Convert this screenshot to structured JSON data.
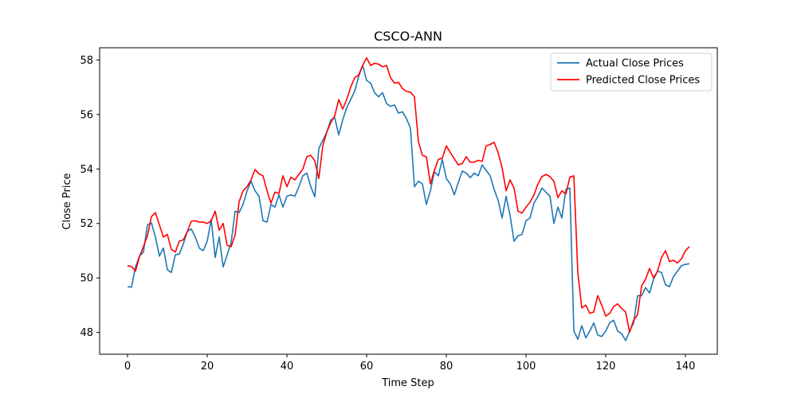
{
  "chart_data": {
    "type": "line",
    "title": "CSCO-ANN",
    "xlabel": "Time Step",
    "ylabel": "Close Price",
    "xlim": [
      -7,
      148
    ],
    "ylim": [
      47.2,
      58.45
    ],
    "xticks": [
      0,
      20,
      40,
      60,
      80,
      100,
      120,
      140
    ],
    "yticks": [
      48,
      50,
      52,
      54,
      56,
      58
    ],
    "xtick_labels": [
      "0",
      "20",
      "40",
      "60",
      "80",
      "100",
      "120",
      "140"
    ],
    "ytick_labels": [
      "48",
      "50",
      "52",
      "54",
      "56",
      "58"
    ],
    "grid": false,
    "legend_position": "top-right",
    "series": [
      {
        "name": "Actual Close Prices",
        "color": "#1f77b4",
        "values": [
          49.68,
          49.66,
          50.4,
          50.8,
          50.95,
          51.95,
          52.02,
          51.5,
          50.8,
          51.1,
          50.3,
          50.2,
          50.85,
          50.88,
          51.25,
          51.7,
          51.8,
          51.5,
          51.1,
          51.0,
          51.35,
          52.15,
          50.75,
          51.5,
          50.4,
          50.85,
          51.3,
          52.45,
          52.4,
          52.7,
          53.2,
          53.55,
          53.2,
          53.0,
          52.1,
          52.05,
          52.7,
          52.6,
          53.05,
          52.6,
          53.0,
          53.05,
          53.0,
          53.35,
          53.75,
          53.85,
          53.35,
          52.98,
          54.75,
          55.05,
          55.35,
          55.8,
          55.88,
          55.25,
          55.8,
          56.25,
          56.55,
          56.85,
          57.4,
          57.8,
          57.25,
          57.15,
          56.8,
          56.65,
          56.8,
          56.4,
          56.3,
          56.35,
          56.05,
          56.1,
          55.85,
          55.5,
          53.35,
          53.55,
          53.45,
          52.7,
          53.2,
          53.9,
          53.75,
          54.35,
          53.65,
          53.45,
          53.05,
          53.5,
          53.92,
          53.85,
          53.68,
          53.85,
          53.75,
          54.15,
          53.95,
          53.75,
          53.25,
          52.85,
          52.2,
          53.0,
          52.3,
          51.35,
          51.55,
          51.6,
          52.1,
          52.2,
          52.75,
          53.0,
          53.3,
          53.15,
          53.0,
          52.0,
          52.6,
          52.2,
          53.25,
          53.3,
          48.05,
          47.75,
          48.25,
          47.8,
          48.05,
          48.35,
          47.9,
          47.85,
          48.05,
          48.35,
          48.45,
          48.05,
          47.95,
          47.7,
          48.05,
          48.35,
          49.35,
          49.35,
          49.65,
          49.45,
          49.95,
          50.25,
          50.2,
          49.75,
          49.68,
          50.05,
          50.25,
          50.45,
          50.5,
          50.52
        ]
      },
      {
        "name": "Predicted Close Prices",
        "color": "#ff0000",
        "values": [
          50.45,
          50.42,
          50.25,
          50.78,
          51.15,
          51.55,
          52.25,
          52.4,
          51.95,
          51.5,
          51.6,
          51.05,
          50.95,
          51.35,
          51.4,
          51.7,
          52.08,
          52.1,
          52.05,
          52.05,
          52.0,
          52.1,
          52.45,
          51.75,
          52.0,
          51.2,
          51.15,
          51.58,
          52.8,
          53.2,
          53.35,
          53.6,
          53.98,
          53.82,
          53.75,
          53.2,
          52.75,
          53.15,
          53.1,
          53.75,
          53.35,
          53.7,
          53.6,
          53.8,
          54.0,
          54.45,
          54.5,
          54.3,
          53.65,
          54.85,
          55.35,
          55.7,
          55.95,
          56.55,
          56.2,
          56.55,
          57.0,
          57.35,
          57.45,
          57.8,
          58.08,
          57.8,
          57.88,
          57.85,
          57.75,
          57.8,
          57.35,
          57.15,
          57.18,
          56.95,
          56.85,
          56.82,
          56.65,
          55.0,
          54.5,
          54.45,
          53.45,
          53.95,
          54.35,
          54.4,
          54.85,
          54.6,
          54.38,
          54.15,
          54.2,
          54.45,
          54.25,
          54.25,
          54.32,
          54.28,
          54.85,
          54.9,
          54.98,
          54.6,
          54.05,
          53.2,
          53.6,
          53.3,
          52.45,
          52.38,
          52.6,
          52.78,
          53.05,
          53.45,
          53.72,
          53.8,
          53.72,
          53.55,
          52.95,
          53.2,
          53.08,
          53.7,
          53.75,
          50.2,
          48.9,
          49.0,
          48.7,
          48.75,
          49.35,
          49.0,
          48.6,
          48.7,
          48.95,
          49.05,
          48.88,
          48.75,
          48.0,
          48.45,
          48.65,
          49.7,
          49.95,
          50.35,
          50.0,
          50.25,
          50.75,
          51.0,
          50.6,
          50.65,
          50.55,
          50.7,
          51.0,
          51.15
        ]
      }
    ]
  }
}
